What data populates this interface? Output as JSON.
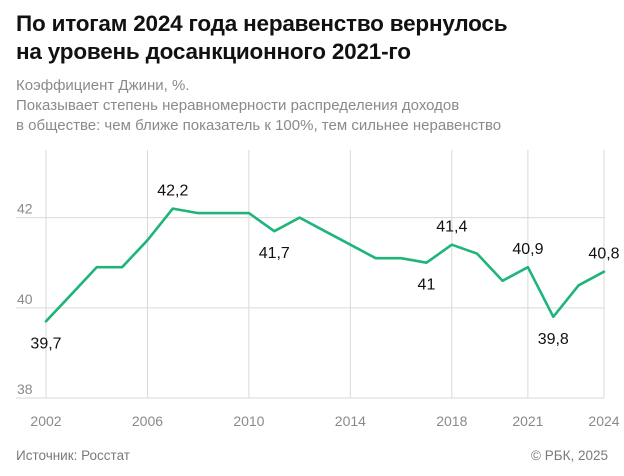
{
  "title_line1": "По итогам 2024 года неравенство вернулось",
  "title_line2": "на уровень досанкционного 2021-го",
  "subtitle_line1": "Коэффициент Джини, %.",
  "subtitle_line2": "Показывает степень неравномерности распределения доходов",
  "subtitle_line3": "в обществе: чем ближе показатель к 100%, тем сильнее неравенство",
  "source": "Источник: Росстат",
  "copyright": "© РБК, 2025",
  "colors": {
    "line": "#1fb57a",
    "grid": "#d9d9d9",
    "text": "#111111",
    "muted": "#8a8a8a"
  },
  "chart_data": {
    "type": "line",
    "x": [
      2002,
      2003,
      2004,
      2005,
      2006,
      2007,
      2008,
      2009,
      2010,
      2011,
      2012,
      2013,
      2014,
      2015,
      2016,
      2017,
      2018,
      2019,
      2020,
      2021,
      2022,
      2023,
      2024
    ],
    "series": [
      {
        "values": [
          39.7,
          40.3,
          40.9,
          40.9,
          41.5,
          42.2,
          42.1,
          42.1,
          42.1,
          41.7,
          42.0,
          41.7,
          41.4,
          41.1,
          41.1,
          41.0,
          41.4,
          41.2,
          40.6,
          40.9,
          39.8,
          40.5,
          40.8
        ]
      }
    ],
    "xlim": [
      2002,
      2024
    ],
    "ylim": [
      38,
      43.5
    ],
    "yticks": [
      38,
      40,
      42
    ],
    "ytick_labels": [
      "38",
      "40",
      "42"
    ],
    "xticks": [
      2002,
      2006,
      2010,
      2014,
      2018,
      2021,
      2024
    ],
    "xtick_labels": [
      "2002",
      "2006",
      "2010",
      "2014",
      "2018",
      "2021",
      "2024"
    ],
    "annotations": [
      {
        "x": 2002,
        "y": 39.7,
        "text": "39,7",
        "position": "below"
      },
      {
        "x": 2007,
        "y": 42.2,
        "text": "42,2",
        "position": "above"
      },
      {
        "x": 2011,
        "y": 41.7,
        "text": "41,7",
        "position": "below"
      },
      {
        "x": 2017,
        "y": 41.0,
        "text": "41",
        "position": "below"
      },
      {
        "x": 2018,
        "y": 41.4,
        "text": "41,4",
        "position": "above"
      },
      {
        "x": 2021,
        "y": 40.9,
        "text": "40,9",
        "position": "above"
      },
      {
        "x": 2022,
        "y": 39.8,
        "text": "39,8",
        "position": "below"
      },
      {
        "x": 2024,
        "y": 40.8,
        "text": "40,8",
        "position": "above"
      }
    ],
    "grid": true
  }
}
